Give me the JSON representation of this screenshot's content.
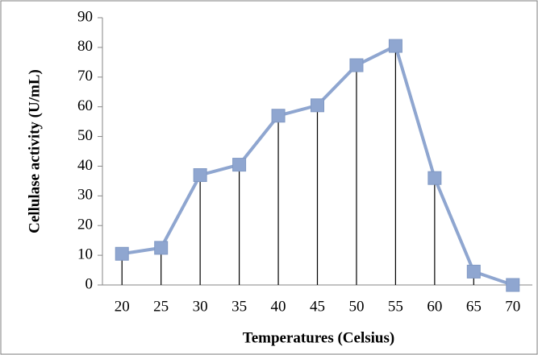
{
  "chart_data": {
    "type": "line",
    "x_label": "Temperatures (Celsius)",
    "y_label": "Cellulase activity (U/mL)",
    "categories": [
      "20",
      "25",
      "30",
      "35",
      "40",
      "45",
      "50",
      "55",
      "60",
      "65",
      "70"
    ],
    "series": [
      {
        "name": "Cellulase activity",
        "color": "#8fa6d0",
        "values": [
          10.5,
          12.5,
          37,
          40.5,
          57,
          60.5,
          74,
          80.5,
          36,
          4.5,
          0
        ]
      }
    ],
    "ylim": [
      0,
      90
    ],
    "yticks": [
      0,
      10,
      20,
      30,
      40,
      50,
      60,
      70,
      80,
      90
    ],
    "drop_lines": true,
    "marker": "square",
    "grid": false
  }
}
